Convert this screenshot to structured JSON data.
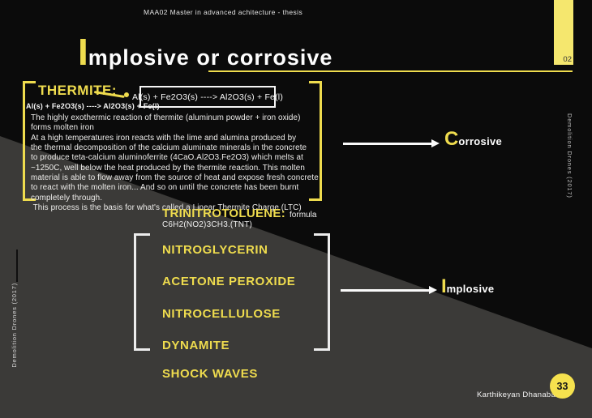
{
  "colors": {
    "background_black": "#0b0b0b",
    "background_gray": "#3b3a38",
    "accent_yellow": "#efdc4e",
    "text_white": "#fafafa"
  },
  "icons": {
    "arrow_right": "→",
    "connector_ring": "○"
  },
  "header": {
    "course": "MAA02 Master in advanced achitecture - thesis",
    "page_number_top": "02"
  },
  "title": {
    "initial": "I",
    "rest": "mplosive or corrosive"
  },
  "thermite": {
    "heading": "THERMITE:",
    "sub_formula": "Al(s) + Fe2O3(s) ----> Al2O3(s) + Fe(l)",
    "boxed_formula": "Al(s) + Fe2O3(s) ----> Al2O3(s) + Fe(l)",
    "paragraph": "The highly exothermic reaction of thermite (aluminum powder + iron oxide)\nforms molten iron\nAt a high temperatures iron reacts with the lime and alumina produced by\nthe thermal decomposition of the calcium aluminate minerals in the concrete\nto produce teta-calcium aluminoferrite (4CaO.Al2O3.Fe2O3) which melts at\n~1250C, well below the heat produced by the thermite reaction. This molten\nmaterial is able to flow away from the source of heat and expose fresh concrete\nto react with the molten iron... And so on until the concrete has been burnt\ncompletely through.\n This process is the basis for what's called a Linear Thermite Charge (LTC)"
  },
  "corrosive_label": {
    "initial": "C",
    "rest": "orrosive"
  },
  "implosive_label": {
    "initial": "I",
    "rest": "mplosive"
  },
  "tnt": {
    "heading": "TRINITROTOLUENE:",
    "label": "formula",
    "formula": "C6H2(NO2)3CH3.(TNT)"
  },
  "explosives": [
    "NITROGLYCERIN",
    "ACETONE PEROXIDE",
    "NITROCELLULOSE",
    "DYNAMITE",
    "SHOCK WAVES"
  ],
  "side_labels": {
    "left": "Demolition Drones (2017)",
    "right": "Demolition Drones (2017)"
  },
  "footer": {
    "author": "Karthikeyan Dhanabala",
    "page_badge": "33"
  }
}
